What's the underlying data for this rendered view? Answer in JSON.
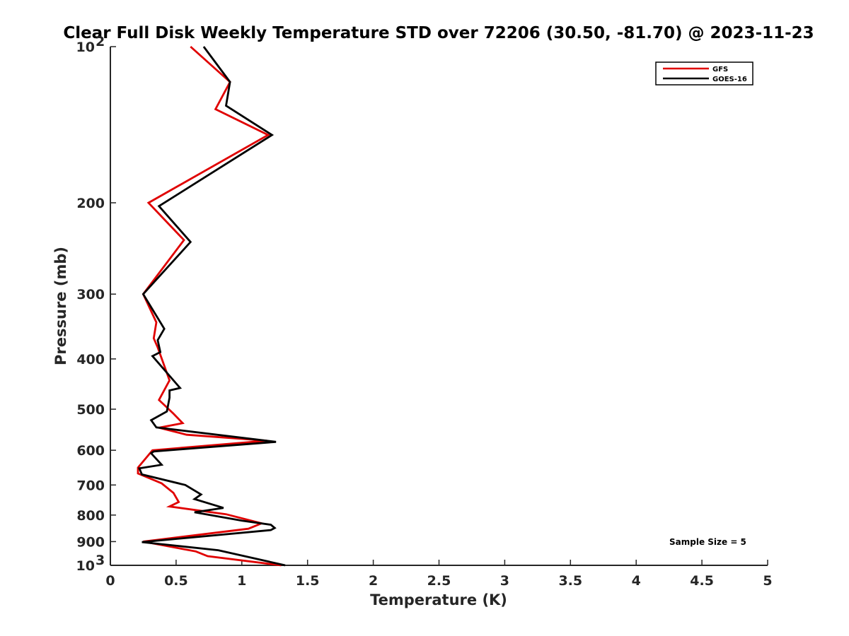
{
  "chart_data": {
    "type": "line",
    "title": "Clear Full Disk Weekly Temperature STD over 72206 (30.50, -81.70) @ 2023-11-23",
    "xlabel": "Temperature (K)",
    "ylabel": "Pressure (mb)",
    "xlim": [
      0,
      5
    ],
    "ylim": [
      100,
      1000
    ],
    "y_scale": "log",
    "y_reversed": true,
    "grid": false,
    "legend_position": "top-right",
    "x_ticks": [
      0,
      0.5,
      1,
      1.5,
      2,
      2.5,
      3,
      3.5,
      4,
      4.5,
      5
    ],
    "x_tick_labels": [
      "0",
      "0.5",
      "1",
      "1.5",
      "2",
      "2.5",
      "3",
      "3.5",
      "4",
      "4.5",
      "5"
    ],
    "y_ticks": [
      {
        "value": 100,
        "label": "10",
        "exp": "2"
      },
      {
        "value": 200,
        "label": "200",
        "exp": ""
      },
      {
        "value": 300,
        "label": "300",
        "exp": ""
      },
      {
        "value": 400,
        "label": "400",
        "exp": ""
      },
      {
        "value": 500,
        "label": "500",
        "exp": ""
      },
      {
        "value": 600,
        "label": "600",
        "exp": ""
      },
      {
        "value": 700,
        "label": "700",
        "exp": ""
      },
      {
        "value": 800,
        "label": "800",
        "exp": ""
      },
      {
        "value": 900,
        "label": "900",
        "exp": ""
      },
      {
        "value": 1000,
        "label": "10",
        "exp": "3"
      }
    ],
    "series": [
      {
        "name": "GFS",
        "color": "#e00000",
        "x": [
          0.61,
          0.91,
          0.8,
          1.2,
          0.29,
          0.56,
          0.25,
          0.35,
          0.33,
          0.36,
          0.45,
          0.37,
          0.48,
          0.55,
          0.37,
          0.58,
          1.19,
          0.32,
          0.21,
          0.21,
          0.39,
          0.48,
          0.52,
          0.45,
          0.88,
          1.15,
          1.05,
          0.25,
          0.65,
          0.74,
          1.3
        ],
        "y": [
          100,
          117,
          132,
          148,
          200,
          236,
          300,
          340,
          365,
          380,
          440,
          480,
          510,
          532,
          543,
          560,
          575,
          600,
          648,
          665,
          695,
          725,
          755,
          770,
          797,
          830,
          850,
          900,
          940,
          960,
          1000
        ]
      },
      {
        "name": "GOES-16",
        "color": "#000000",
        "x": [
          0.71,
          0.91,
          0.88,
          1.23,
          0.37,
          0.61,
          0.25,
          0.41,
          0.36,
          0.38,
          0.32,
          0.53,
          0.45,
          0.45,
          0.43,
          0.31,
          0.35,
          1.26,
          0.33,
          0.31,
          0.39,
          0.22,
          0.24,
          0.57,
          0.69,
          0.64,
          0.86,
          0.64,
          1.0,
          1.22,
          1.25,
          1.22,
          0.24,
          0.82,
          1.33
        ],
        "y": [
          100,
          117,
          130,
          148,
          203,
          238,
          300,
          350,
          368,
          388,
          395,
          455,
          460,
          475,
          505,
          525,
          542,
          578,
          603,
          608,
          640,
          650,
          668,
          700,
          730,
          745,
          775,
          790,
          820,
          835,
          847,
          855,
          902,
          935,
          1000
        ]
      }
    ],
    "annotations": [
      "Sample Size = 5"
    ]
  }
}
